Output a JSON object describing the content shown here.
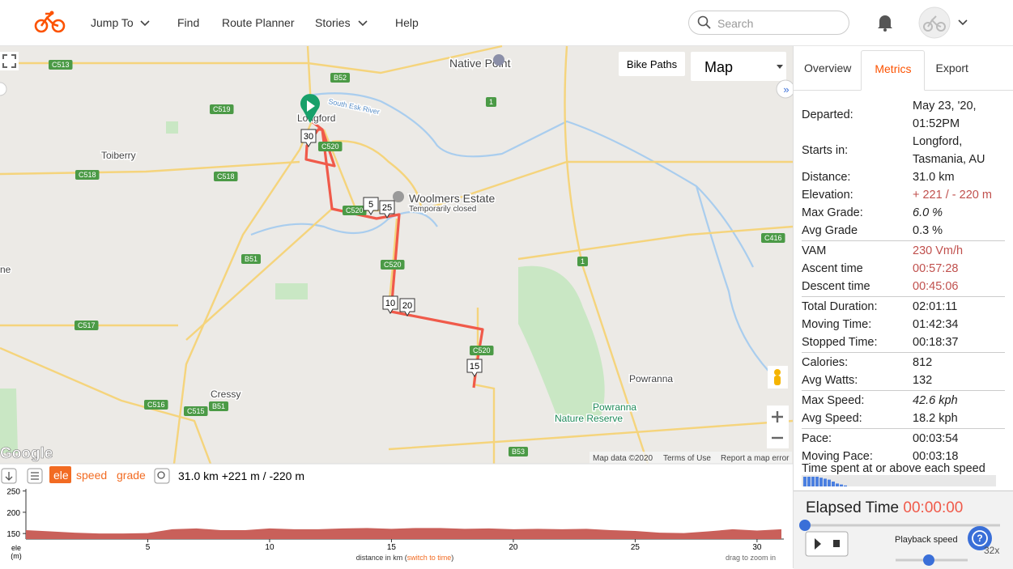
{
  "nav": {
    "items": [
      "Jump To",
      "Find",
      "Route Planner",
      "Stories",
      "Help"
    ],
    "search_placeholder": "Search"
  },
  "map": {
    "bike_paths": "Bike Paths",
    "map_type": "Map",
    "places": [
      "Native Point",
      "Longford",
      "Toiberry",
      "Woolmers Estate",
      "Temporarily closed",
      "Cressy",
      "Powranna",
      "Powranna",
      "Nature Reserve",
      "ne",
      "South Esk River"
    ],
    "road_shields": [
      "C513",
      "B52",
      "C519",
      "C520",
      "C518",
      "C518",
      "C520",
      "C520",
      "B51",
      "C517",
      "C520",
      "C516",
      "C515",
      "B51",
      "C416",
      "B53",
      "1",
      "1"
    ],
    "route_markers": [
      "30",
      "5",
      "25",
      "10",
      "20",
      "15"
    ],
    "attribution": [
      "Map data ©2020",
      "Terms of Use",
      "Report a map error"
    ],
    "logo": "Google"
  },
  "elevation_toolbar": {
    "modes": [
      "ele",
      "speed",
      "grade"
    ],
    "summary": "31.0 km +221 m / -220 m"
  },
  "chart_data": {
    "type": "area",
    "color": "#c9605a",
    "x": [
      0,
      1,
      2,
      3,
      4,
      5,
      6,
      7,
      8,
      9,
      10,
      11,
      12,
      13,
      14,
      15,
      16,
      17,
      18,
      19,
      20,
      21,
      22,
      23,
      24,
      25,
      26,
      27,
      28,
      29,
      30,
      31
    ],
    "values": [
      158,
      155,
      152,
      150,
      150,
      151,
      160,
      162,
      158,
      158,
      162,
      160,
      160,
      162,
      163,
      161,
      163,
      163,
      161,
      162,
      160,
      161,
      160,
      161,
      158,
      156,
      152,
      151,
      155,
      160,
      157,
      160
    ],
    "xlim": [
      0,
      31.1
    ],
    "ylim": [
      137,
      255
    ],
    "xticks": [
      5,
      10,
      15,
      20,
      25,
      30
    ],
    "yticks": [
      150,
      200,
      250
    ],
    "y_label": [
      "ele",
      "(m)"
    ],
    "x_label": [
      "distance in km (",
      "switch to time",
      ")"
    ],
    "hint": "drag to zoom in"
  },
  "sidebar": {
    "tabs": [
      "Overview",
      "Metrics",
      "Export"
    ],
    "active_tab": 1,
    "groups": [
      [
        {
          "label": "Departed:",
          "value": "May 23, '20, 01:52PM"
        },
        {
          "label": "Starts in:",
          "value": "Longford, Tasmania, AU"
        },
        {
          "label": "Distance:",
          "value": "31.0 km"
        },
        {
          "label": "Elevation:",
          "value": "+ 221 / - 220 m",
          "color": "#c0504d"
        },
        {
          "label": "Max Grade:",
          "value": "6.0 %",
          "italic": true
        },
        {
          "label": "Avg Grade",
          "value": "0.3 %"
        }
      ],
      [
        {
          "label": "VAM",
          "value": "230 Vm/h",
          "color": "#c0504d"
        },
        {
          "label": "Ascent time",
          "value": "00:57:28",
          "color": "#c0504d"
        },
        {
          "label": "Descent time",
          "value": "00:45:06",
          "color": "#c0504d"
        }
      ],
      [
        {
          "label": "Total Duration:",
          "value": "02:01:11"
        },
        {
          "label": "Moving Time:",
          "value": "01:42:34"
        },
        {
          "label": "Stopped Time:",
          "value": "00:18:37"
        }
      ],
      [
        {
          "label": "Calories:",
          "value": "812"
        },
        {
          "label": "Avg Watts:",
          "value": "132"
        }
      ],
      [
        {
          "label": "Max Speed:",
          "value": "42.6 kph",
          "italic": true
        },
        {
          "label": "Avg Speed:",
          "value": "18.2 kph"
        }
      ],
      [
        {
          "label": "Pace:",
          "value": "00:03:54"
        },
        {
          "label": "Moving Pace:",
          "value": "00:03:18"
        }
      ]
    ]
  },
  "speed_histogram": {
    "title": "Time spent at or above each speed",
    "values": [
      10,
      10,
      10,
      10,
      9,
      8,
      7,
      5,
      3,
      2,
      1
    ]
  },
  "playback": {
    "label": "Elapsed Time",
    "elapsed": "00:00:00",
    "speed_label": "Playback speed",
    "speed": "32x"
  }
}
